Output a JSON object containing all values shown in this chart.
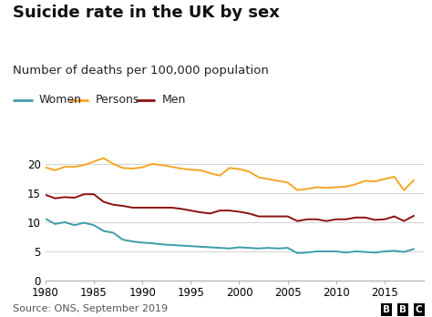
{
  "title": "Suicide rate in the UK by sex",
  "subtitle": "Number of deaths per 100,000 population",
  "source": "Source: ONS, September 2019",
  "years": [
    1980,
    1981,
    1982,
    1983,
    1984,
    1985,
    1986,
    1987,
    1988,
    1989,
    1990,
    1991,
    1992,
    1993,
    1994,
    1995,
    1996,
    1997,
    1998,
    1999,
    2000,
    2001,
    2002,
    2003,
    2004,
    2005,
    2006,
    2007,
    2008,
    2009,
    2010,
    2011,
    2012,
    2013,
    2014,
    2015,
    2016,
    2017,
    2018
  ],
  "women": [
    10.6,
    9.7,
    10.0,
    9.5,
    9.9,
    9.5,
    8.5,
    8.2,
    7.0,
    6.7,
    6.5,
    6.4,
    6.2,
    6.1,
    6.0,
    5.9,
    5.8,
    5.7,
    5.6,
    5.5,
    5.7,
    5.6,
    5.5,
    5.6,
    5.5,
    5.6,
    4.7,
    4.8,
    5.0,
    5.0,
    5.0,
    4.8,
    5.0,
    4.9,
    4.8,
    5.0,
    5.1,
    4.9,
    5.4
  ],
  "persons": [
    19.4,
    18.9,
    19.5,
    19.5,
    19.8,
    20.4,
    21.0,
    20.0,
    19.3,
    19.2,
    19.4,
    20.0,
    19.8,
    19.5,
    19.2,
    19.0,
    18.9,
    18.4,
    18.0,
    19.3,
    19.1,
    18.7,
    17.7,
    17.4,
    17.1,
    16.8,
    15.5,
    15.7,
    16.0,
    15.9,
    16.0,
    16.1,
    16.5,
    17.1,
    17.0,
    17.4,
    17.8,
    15.5,
    17.2
  ],
  "men": [
    14.7,
    14.1,
    14.3,
    14.2,
    14.8,
    14.8,
    13.5,
    13.0,
    12.8,
    12.5,
    12.5,
    12.5,
    12.5,
    12.5,
    12.3,
    12.0,
    11.7,
    11.5,
    12.0,
    12.0,
    11.8,
    11.5,
    11.0,
    11.0,
    11.0,
    11.0,
    10.2,
    10.5,
    10.5,
    10.2,
    10.5,
    10.5,
    10.8,
    10.8,
    10.4,
    10.5,
    11.0,
    10.2,
    11.1
  ],
  "color_women": "#3d9da8",
  "color_persons": "#f5a623",
  "color_men": "#8b1010",
  "ylim": [
    0,
    25
  ],
  "yticks": [
    0,
    5,
    10,
    15,
    20
  ],
  "xlim": [
    1980,
    2019
  ],
  "xticks": [
    1980,
    1985,
    1990,
    1995,
    2000,
    2005,
    2010,
    2015
  ],
  "bg_color": "#ffffff",
  "grid_color": "#cccccc",
  "title_fontsize": 13,
  "subtitle_fontsize": 9.5,
  "legend_fontsize": 9,
  "axis_fontsize": 8.5,
  "source_fontsize": 8,
  "linewidth": 1.4
}
